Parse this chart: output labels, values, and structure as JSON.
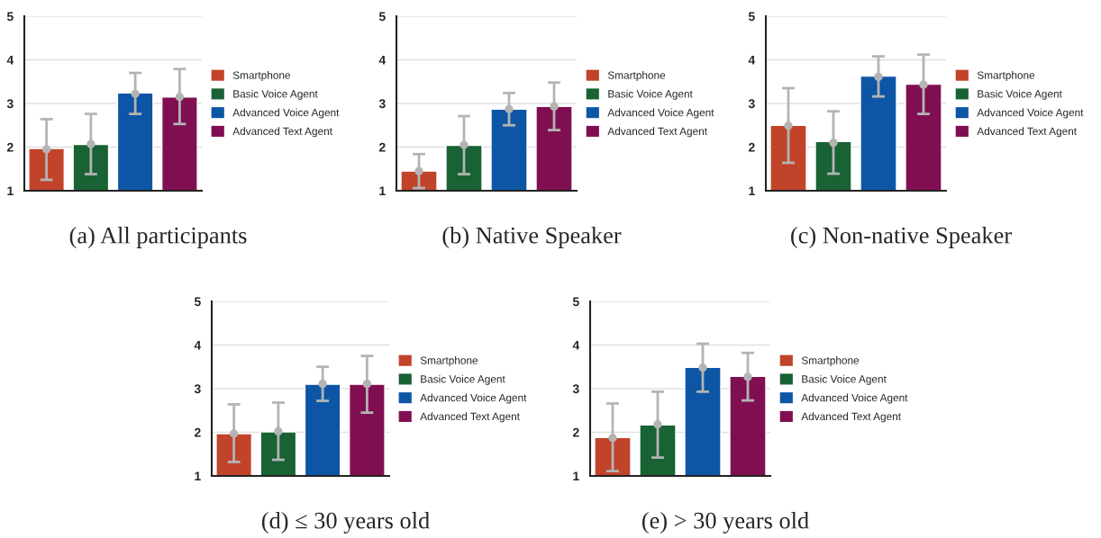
{
  "chart_data": [
    {
      "type": "bar",
      "stacked": true,
      "title": "(a) All participants",
      "categories": [
        null,
        null,
        null,
        null
      ],
      "ylim": [
        1,
        5
      ],
      "yticks": [
        1,
        2,
        3,
        4,
        5
      ],
      "grid": "y",
      "legend": "right",
      "tick_labels": "y",
      "series": [
        {
          "name": "Smartphone",
          "color": "#c1432a",
          "values": [
            1.97,
            null,
            null,
            null
          ],
          "errors": [
            [
              1.25,
              2.64
            ],
            null,
            null,
            null
          ]
        },
        {
          "name": "Basic Voice Agent",
          "color": "#186234",
          "values": [
            null,
            2.06,
            null,
            null
          ],
          "errors": [
            null,
            [
              1.38,
              2.76
            ],
            null,
            null
          ]
        },
        {
          "name": "Advanced Voice Agent",
          "color": "#0d56a6",
          "values": [
            null,
            null,
            3.24,
            null
          ],
          "errors": [
            null,
            null,
            [
              2.76,
              3.7
            ],
            null
          ]
        },
        {
          "name": "Advanced Text Agent",
          "color": "#800f52",
          "values": [
            null,
            null,
            null,
            3.15
          ],
          "errors": [
            null,
            null,
            null,
            [
              2.53,
              3.79
            ]
          ]
        },
        {
          "type": "scatter",
          "color": "#b4b4b4",
          "marker": "circle",
          "values": [
            1.95,
            2.07,
            3.22,
            3.15
          ]
        }
      ]
    },
    {
      "type": "bar",
      "stacked": true,
      "title": "(b) Native Speaker",
      "categories": [
        null,
        null,
        null,
        null
      ],
      "ylim": [
        1,
        5
      ],
      "yticks": [
        1,
        2,
        3,
        4,
        5
      ],
      "grid": "y",
      "legend": "right",
      "tick_labels": "y",
      "series": [
        {
          "name": "Smartphone",
          "color": "#c1432a",
          "values": [
            1.45,
            null,
            null,
            null
          ],
          "errors": [
            [
              1.06,
              1.84
            ],
            null,
            null,
            null
          ]
        },
        {
          "name": "Basic Voice Agent",
          "color": "#186234",
          "values": [
            null,
            2.04,
            null,
            null
          ],
          "errors": [
            null,
            [
              1.38,
              2.71
            ],
            null,
            null
          ]
        },
        {
          "name": "Advanced Voice Agent",
          "color": "#0d56a6",
          "values": [
            null,
            null,
            2.87,
            null
          ],
          "errors": [
            null,
            null,
            [
              2.5,
              3.24
            ],
            null
          ]
        },
        {
          "name": "Advanced Text Agent",
          "color": "#800f52",
          "values": [
            null,
            null,
            null,
            2.93
          ],
          "errors": [
            null,
            null,
            null,
            [
              2.39,
              3.48
            ]
          ]
        },
        {
          "type": "scatter",
          "color": "#b4b4b4",
          "marker": "circle",
          "values": [
            1.45,
            2.05,
            2.87,
            2.93
          ]
        }
      ]
    },
    {
      "type": "bar",
      "stacked": true,
      "title": "(c) Non-native Speaker",
      "categories": [
        null,
        null,
        null,
        null
      ],
      "ylim": [
        1,
        5
      ],
      "yticks": [
        1,
        2,
        3,
        4,
        5
      ],
      "grid": "y",
      "legend": "right",
      "tick_labels": "y",
      "series": [
        {
          "name": "Smartphone",
          "color": "#c1432a",
          "values": [
            2.5,
            null,
            null,
            null
          ],
          "errors": [
            [
              1.64,
              3.35
            ],
            null,
            null,
            null
          ]
        },
        {
          "name": "Basic Voice Agent",
          "color": "#186234",
          "values": [
            null,
            2.13,
            null,
            null
          ],
          "errors": [
            null,
            [
              1.39,
              2.82
            ],
            null,
            null
          ]
        },
        {
          "name": "Advanced Voice Agent",
          "color": "#0d56a6",
          "values": [
            null,
            null,
            3.63,
            null
          ],
          "errors": [
            null,
            null,
            [
              3.16,
              4.08
            ],
            null
          ]
        },
        {
          "name": "Advanced Text Agent",
          "color": "#800f52",
          "values": [
            null,
            null,
            null,
            3.44
          ],
          "errors": [
            null,
            null,
            null,
            [
              2.76,
              4.12
            ]
          ]
        },
        {
          "type": "scatter",
          "color": "#b4b4b4",
          "marker": "circle",
          "values": [
            2.49,
            2.1,
            3.61,
            3.43
          ]
        }
      ]
    },
    {
      "type": "bar",
      "stacked": true,
      "title": "(d) ≤ 30 years old",
      "categories": [
        null,
        null,
        null,
        null
      ],
      "ylim": [
        1,
        5
      ],
      "yticks": [
        1,
        2,
        3,
        4,
        5
      ],
      "grid": "y",
      "legend": "right",
      "tick_labels": "y",
      "series": [
        {
          "name": "Smartphone",
          "color": "#c1432a",
          "values": [
            1.97,
            null,
            null,
            null
          ],
          "errors": [
            [
              1.32,
              2.64
            ],
            null,
            null,
            null
          ]
        },
        {
          "name": "Basic Voice Agent",
          "color": "#186234",
          "values": [
            null,
            2.01,
            null,
            null
          ],
          "errors": [
            null,
            [
              1.37,
              2.68
            ],
            null,
            null
          ]
        },
        {
          "name": "Advanced Voice Agent",
          "color": "#0d56a6",
          "values": [
            null,
            null,
            3.1,
            null
          ],
          "errors": [
            null,
            null,
            [
              2.72,
              3.5
            ],
            null
          ]
        },
        {
          "name": "Advanced Text Agent",
          "color": "#800f52",
          "values": [
            null,
            null,
            null,
            3.1
          ],
          "errors": [
            null,
            null,
            null,
            [
              2.45,
              3.75
            ]
          ]
        },
        {
          "type": "scatter",
          "color": "#b4b4b4",
          "marker": "circle",
          "values": [
            1.97,
            2.02,
            3.11,
            3.11
          ]
        }
      ]
    },
    {
      "type": "bar",
      "stacked": true,
      "title": "(e) > 30 years old",
      "categories": [
        null,
        null,
        null,
        null
      ],
      "ylim": [
        1,
        5
      ],
      "yticks": [
        1,
        2,
        3,
        4,
        5
      ],
      "grid": "y",
      "legend": "right",
      "tick_labels": "y",
      "series": [
        {
          "name": "Smartphone",
          "color": "#c1432a",
          "values": [
            1.88,
            null,
            null,
            null
          ],
          "errors": [
            [
              1.11,
              2.66
            ],
            null,
            null,
            null
          ]
        },
        {
          "name": "Basic Voice Agent",
          "color": "#186234",
          "values": [
            null,
            2.17,
            null,
            null
          ],
          "errors": [
            null,
            [
              1.42,
              2.93
            ],
            null,
            null
          ]
        },
        {
          "name": "Advanced Voice Agent",
          "color": "#0d56a6",
          "values": [
            null,
            null,
            3.49,
            null
          ],
          "errors": [
            null,
            null,
            [
              2.93,
              4.03
            ],
            null
          ]
        },
        {
          "name": "Advanced Text Agent",
          "color": "#800f52",
          "values": [
            null,
            null,
            null,
            3.28
          ],
          "errors": [
            null,
            null,
            null,
            [
              2.73,
              3.82
            ]
          ]
        },
        {
          "type": "scatter",
          "color": "#b4b4b4",
          "marker": "circle",
          "values": [
            1.87,
            2.18,
            3.48,
            3.27
          ]
        }
      ]
    }
  ]
}
